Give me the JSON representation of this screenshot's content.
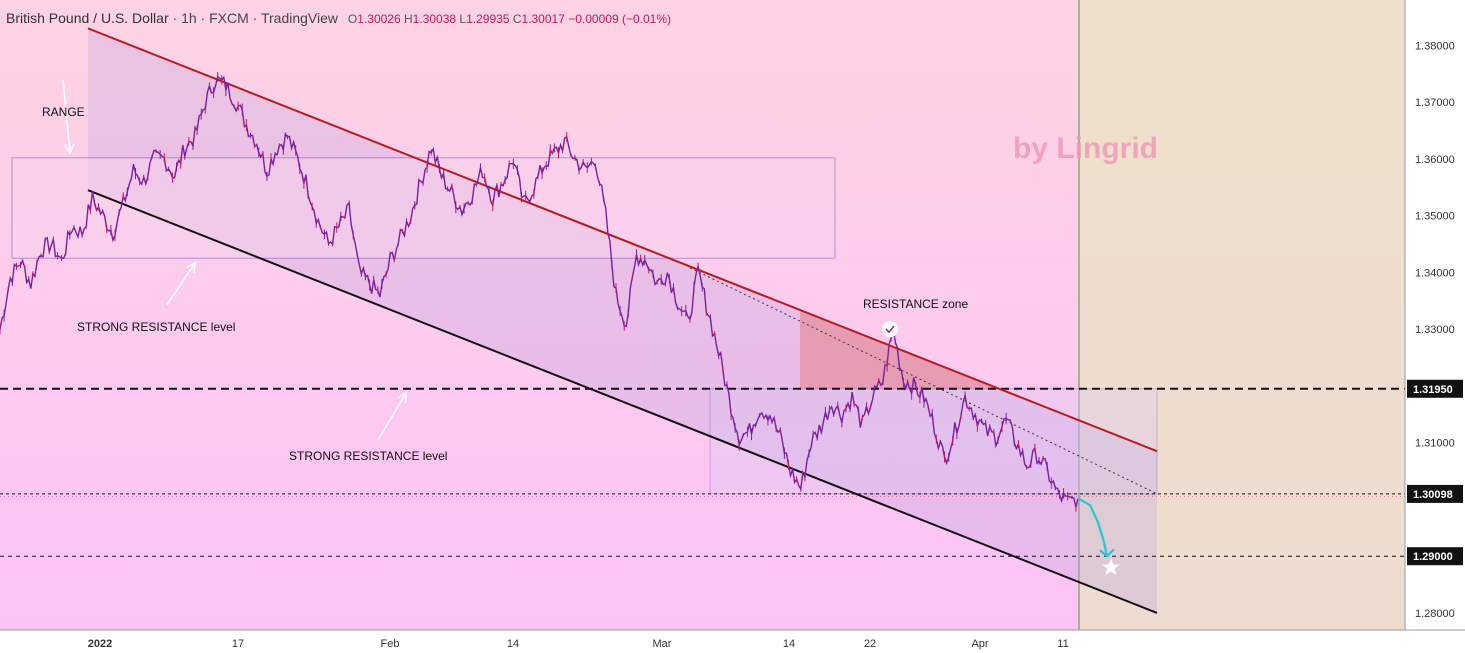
{
  "header": {
    "symbol": "British Pound / U.S. Dollar",
    "interval": "1h",
    "broker": "FXCM",
    "platform": "TradingView",
    "ohlc": {
      "o_label": "O",
      "o": "1.30026",
      "h_label": "H",
      "h": "1.30038",
      "l_label": "L",
      "l": "1.29935",
      "c_label": "C",
      "c": "1.30017",
      "change": "−0.00009 (−0.01%)"
    }
  },
  "watermark": "by Lingrid",
  "annotations": {
    "range": "RANGE",
    "strong_resistance_1": "STRONG RESISTANCE level",
    "strong_resistance_2": "STRONG RESISTANCE level",
    "resistance_zone": "RESISTANCE zone"
  },
  "colors": {
    "price": "#7b1fa2",
    "price_alt": "#c2185b",
    "channel_top": "#b71c1c",
    "channel_bottom": "#111111",
    "box": "#7e57c2",
    "projection": "#26c6da"
  },
  "chart_data": {
    "type": "line",
    "x_ticks": [
      "2022",
      "17",
      "Feb",
      "14",
      "Mar",
      "14",
      "22",
      "Apr",
      "11"
    ],
    "y_ticks": [
      "1.38000",
      "1.37000",
      "1.36000",
      "1.35000",
      "1.34000",
      "1.33000",
      "1.31000",
      "1.28000"
    ],
    "ylim": [
      1.277,
      1.388
    ],
    "price_labels": [
      {
        "label": "1.31950",
        "value": 1.3195
      },
      {
        "label": "1.30098",
        "value": 1.30098
      },
      {
        "label": "1.29000",
        "value": 1.29
      }
    ],
    "series": [
      {
        "values": [
          1.33,
          1.339,
          1.342,
          1.338,
          1.344,
          1.345,
          1.342,
          1.348,
          1.347,
          1.353,
          1.35,
          1.347,
          1.352,
          1.358,
          1.356,
          1.36,
          1.36,
          1.357,
          1.362,
          1.364,
          1.37,
          1.374,
          1.373,
          1.37,
          1.366,
          1.363,
          1.358,
          1.362,
          1.364,
          1.36,
          1.355,
          1.349,
          1.345,
          1.348,
          1.351,
          1.34,
          1.338,
          1.336,
          1.342,
          1.346,
          1.35,
          1.356,
          1.362,
          1.357,
          1.354,
          1.351,
          1.354,
          1.358,
          1.353,
          1.356,
          1.36,
          1.352,
          1.355,
          1.359,
          1.361,
          1.363,
          1.36,
          1.358,
          1.36,
          1.35,
          1.336,
          1.331,
          1.343,
          1.342,
          1.338,
          1.34,
          1.335,
          1.331,
          1.34,
          1.333,
          1.326,
          1.318,
          1.311,
          1.312,
          1.316,
          1.315,
          1.311,
          1.305,
          1.302,
          1.31,
          1.313,
          1.317,
          1.315,
          1.318,
          1.313,
          1.318,
          1.321,
          1.33,
          1.321,
          1.32,
          1.318,
          1.313,
          1.307,
          1.312,
          1.318,
          1.315,
          1.312,
          1.311,
          1.314,
          1.31,
          1.306,
          1.308,
          1.305,
          1.301,
          1.2995,
          1.3002
        ]
      }
    ],
    "channel": {
      "upper": {
        "x0_frac": 0.0,
        "y0": 1.383,
        "x1_frac": 1.0,
        "y1": 1.3085
      },
      "lower": {
        "x0_frac": 0.0,
        "y0": 1.3545,
        "x1_frac": 1.0,
        "y1": 1.28
      }
    },
    "projection": [
      1.3002,
      1.299,
      1.296,
      1.2925,
      1.29
    ],
    "legend": "none",
    "grid": false
  }
}
